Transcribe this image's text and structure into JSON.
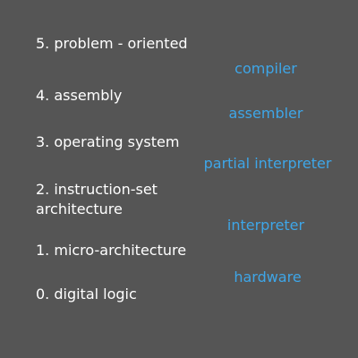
{
  "colors": {
    "background": "#555555",
    "level_text": "#ffffff",
    "tool_text": "#3ea6e8"
  },
  "levels": [
    {
      "label": "5. problem - oriented"
    },
    {
      "label": "4. assembly"
    },
    {
      "label": "3. operating system"
    },
    {
      "label": "2. instruction-set\n    architecture"
    },
    {
      "label": "1. micro-architecture"
    },
    {
      "label": "0. digital logic"
    }
  ],
  "tools": [
    {
      "label": "compiler"
    },
    {
      "label": "assembler"
    },
    {
      "label": "partial interpreter"
    },
    {
      "label": "interpreter"
    },
    {
      "label": "hardware"
    }
  ]
}
